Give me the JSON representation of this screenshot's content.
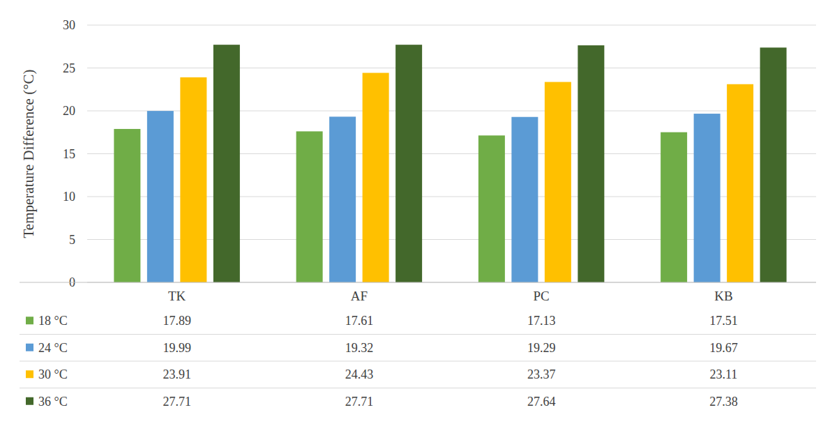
{
  "chart_data": {
    "type": "bar",
    "y_label": "Temperature Difference (°C)",
    "categories": [
      "TK",
      "AF",
      "PC",
      "KB"
    ],
    "series": [
      {
        "name": "18 °C",
        "color": "#70ad47",
        "values": [
          17.89,
          17.61,
          17.13,
          17.51
        ]
      },
      {
        "name": "24 °C",
        "color": "#5b9bd5",
        "values": [
          19.99,
          19.32,
          19.29,
          19.67
        ]
      },
      {
        "name": "30 °C",
        "color": "#ffc000",
        "values": [
          23.91,
          24.43,
          23.37,
          23.11
        ]
      },
      {
        "name": "36 °C",
        "color": "#43682b",
        "values": [
          27.71,
          27.71,
          27.64,
          27.38
        ]
      }
    ],
    "ylim": [
      0,
      30
    ],
    "yticks": [
      0,
      5,
      10,
      15,
      20,
      25,
      30
    ],
    "grid": true,
    "legend": "bottom"
  }
}
